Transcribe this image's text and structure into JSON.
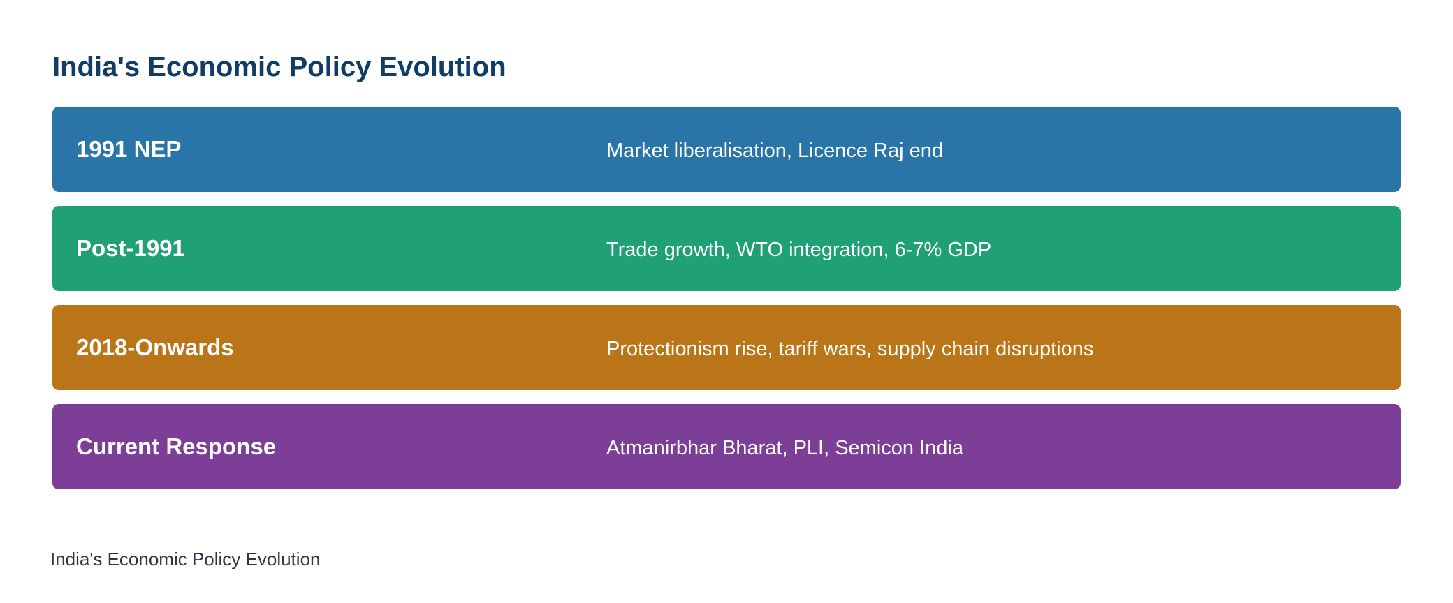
{
  "title": "India's Economic Policy Evolution",
  "stages": [
    {
      "label": "1991 NEP",
      "description": "Market liberalisation, Licence Raj end",
      "color": "#2a75a8"
    },
    {
      "label": "Post-1991",
      "description": "Trade growth, WTO integration, 6-7% GDP",
      "color": "#1fa075"
    },
    {
      "label": "2018-Onwards",
      "description": "Protectionism rise, tariff wars, supply chain disruptions",
      "color": "#bb7519"
    },
    {
      "label": "Current Response",
      "description": "Atmanirbhar Bharat, PLI, Semicon India",
      "color": "#7c3e97"
    }
  ],
  "caption": "India's Economic Policy Evolution",
  "colors": {
    "title": "#0f3d66",
    "caption": "#333344",
    "row_text": "#ffffff",
    "background": "#ffffff"
  }
}
